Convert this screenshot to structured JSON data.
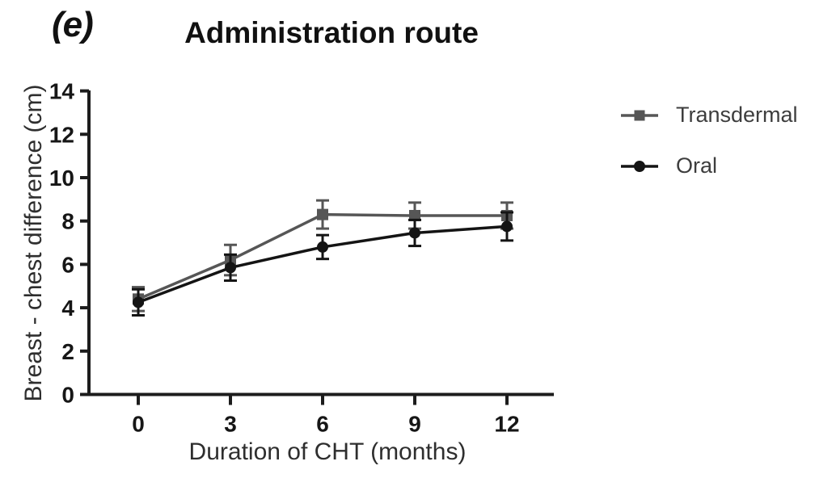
{
  "panel_label": "(e)",
  "chart_data": {
    "type": "line",
    "title": "Administration route",
    "xlabel": "Duration of CHT (months)",
    "ylabel": "Breast - chest difference (cm)",
    "x": [
      0,
      3,
      6,
      9,
      12
    ],
    "xticks": [
      0,
      3,
      6,
      9,
      12
    ],
    "yticks": [
      0,
      2,
      4,
      6,
      8,
      10,
      12,
      14
    ],
    "xlim": [
      0,
      13.5
    ],
    "ylim": [
      0,
      14
    ],
    "grid": false,
    "legend_position": "top-right",
    "axis_color": "#1c1c1c",
    "series": [
      {
        "name": "Transdermal",
        "marker": "square",
        "color": "#565656",
        "values": [
          4.4,
          6.2,
          8.3,
          8.25,
          8.25
        ],
        "errors": [
          0.55,
          0.7,
          0.65,
          0.6,
          0.6
        ]
      },
      {
        "name": "Oral",
        "marker": "circle",
        "color": "#141414",
        "values": [
          4.25,
          5.85,
          6.8,
          7.45,
          7.75
        ],
        "errors": [
          0.6,
          0.6,
          0.55,
          0.6,
          0.65
        ]
      }
    ]
  }
}
